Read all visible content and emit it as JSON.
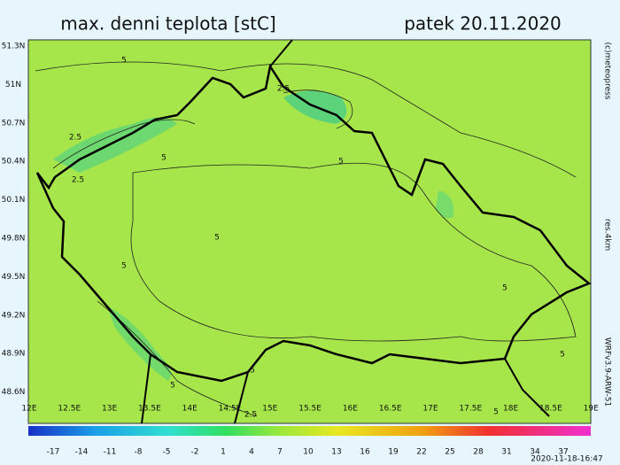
{
  "header": {
    "title": "max. denni teplota [stC]",
    "date": "patek 20.11.2020"
  },
  "latitudes": [
    "51.3N",
    "51N",
    "50.7N",
    "50.4N",
    "50.1N",
    "49.8N",
    "49.5N",
    "49.2N",
    "48.9N",
    "48.6N"
  ],
  "longitudes": [
    "12E",
    "12.5E",
    "13E",
    "13.5E",
    "14E",
    "14.5E",
    "15E",
    "15.5E",
    "16E",
    "16.5E",
    "17E",
    "17.5E",
    "18E",
    "18.5E",
    "19E"
  ],
  "colorbar": {
    "ticks": [
      "-17",
      "-14",
      "-11",
      "-8",
      "-5",
      "-2",
      "1",
      "4",
      "7",
      "10",
      "13",
      "16",
      "19",
      "22",
      "25",
      "28",
      "31",
      "34",
      "37"
    ]
  },
  "contour_labels": [
    "5",
    "2.5",
    "5",
    "2.5",
    "2.5",
    "5",
    "5",
    "5",
    "5",
    "5",
    "5",
    "2.5",
    "5",
    "5"
  ],
  "side": {
    "copyright": "(c)meteopress",
    "resolution": "res.4km",
    "model": "WRFv3.9-ARW-51"
  },
  "footer": {
    "timestamp": "2020-11-18-16:47"
  }
}
